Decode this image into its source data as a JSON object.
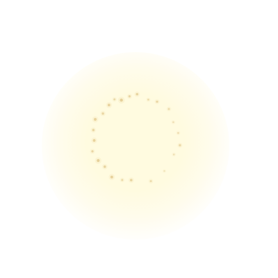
{
  "colors": {
    "background": "#ffffff",
    "glow": "#fff9dc",
    "sparkle": "#e2c98f",
    "sparkle_highlight": "#f3e3b5"
  }
}
